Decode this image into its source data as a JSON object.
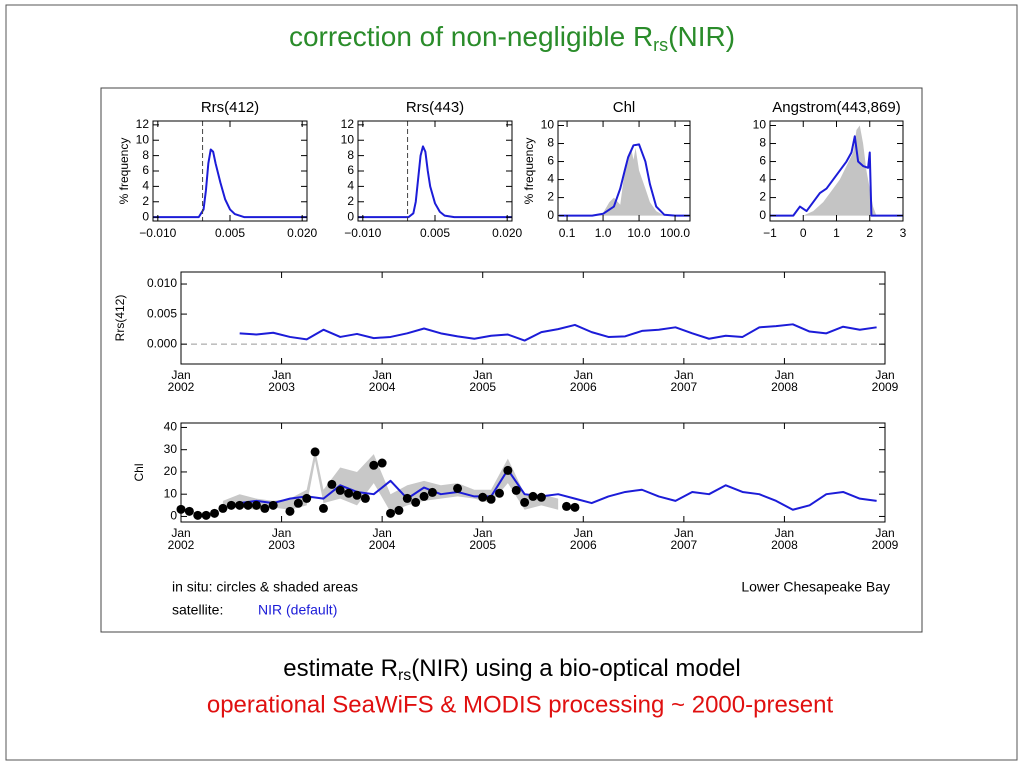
{
  "title": {
    "text": "correction of non-negligible R",
    "sub": "rs",
    "tail": "(NIR)"
  },
  "chart_data": [
    {
      "type": "line",
      "title": "Rrs(412)",
      "y_label": "% frequency",
      "xlim": [
        -0.011,
        0.021
      ],
      "xticks": [
        {
          "value": -0.01,
          "label": "−0.010"
        },
        0.005,
        {
          "value": 0.02,
          "label": "0.020"
        }
      ],
      "ylim": [
        -0.5,
        12.5
      ],
      "yticks": [
        0,
        2,
        4,
        6,
        8,
        10,
        12
      ],
      "ref_x": -0.0007,
      "series": [
        {
          "style": "line",
          "color": "#1c1cd8",
          "x": [
            -0.011,
            -0.0015,
            -0.0005,
            0,
            0.0005,
            0.001,
            0.0015,
            0.002,
            0.003,
            0.004,
            0.005,
            0.006,
            0.008,
            0.021
          ],
          "values": [
            0,
            0,
            1,
            3.5,
            7,
            8.8,
            8.5,
            7,
            4.5,
            2.3,
            1,
            0.4,
            0,
            0
          ]
        }
      ]
    },
    {
      "type": "line",
      "title": "Rrs(443)",
      "xlim": [
        -0.011,
        0.021
      ],
      "xticks": [
        {
          "value": -0.01,
          "label": "−0.010"
        },
        0.005,
        {
          "value": 0.02,
          "label": "0.020"
        }
      ],
      "ylim": [
        -0.5,
        12.5
      ],
      "yticks": [
        0,
        2,
        4,
        6,
        8,
        10,
        12
      ],
      "ref_x": -0.0007,
      "series": [
        {
          "style": "line",
          "color": "#1c1cd8",
          "x": [
            -0.011,
            -0.0005,
            0.0005,
            0.001,
            0.0015,
            0.002,
            0.0025,
            0.003,
            0.0035,
            0.004,
            0.005,
            0.006,
            0.007,
            0.009,
            0.021
          ],
          "values": [
            0,
            0,
            0.5,
            2,
            5,
            8,
            9.2,
            8.5,
            6,
            4,
            1.8,
            0.7,
            0.2,
            0,
            0
          ]
        }
      ]
    },
    {
      "type": "line",
      "title": "Chl",
      "y_label": "% frequency",
      "xscale": "log",
      "xlim": [
        0.056,
        260
      ],
      "xticks": [
        0.1,
        {
          "value": 1,
          "label": "1.0"
        },
        {
          "value": 10,
          "label": "10.0"
        },
        {
          "value": 100,
          "label": "100.0"
        }
      ],
      "ylim": [
        -0.6,
        10.5
      ],
      "yticks": [
        0,
        2,
        4,
        6,
        8,
        10
      ],
      "series": [
        {
          "style": "area",
          "color": "#c4c4c4",
          "x": [
            0.5,
            1,
            1.5,
            2,
            3,
            4,
            5,
            6,
            7,
            8,
            10,
            15,
            20,
            30,
            50
          ],
          "values": [
            0,
            0.3,
            1.5,
            2,
            1.2,
            5,
            6,
            7.5,
            6.2,
            7.5,
            5,
            3,
            1.5,
            0.5,
            0
          ]
        },
        {
          "style": "line",
          "color": "#1c1cd8",
          "x": [
            0.06,
            0.5,
            1,
            2,
            3,
            4,
            5,
            7,
            10,
            15,
            20,
            30,
            50,
            100,
            250
          ],
          "values": [
            0,
            0,
            0.2,
            1,
            3,
            5,
            6.5,
            7.8,
            7.9,
            6,
            3.5,
            1,
            0.1,
            0,
            0
          ]
        }
      ]
    },
    {
      "type": "line",
      "title": "Angstrom(443,869)",
      "xlim": [
        -1,
        3
      ],
      "xticks": [
        {
          "value": -1,
          "label": "−1"
        },
        0,
        1,
        2,
        3
      ],
      "ylim": [
        -0.6,
        10.5
      ],
      "yticks": [
        0,
        2,
        4,
        6,
        8,
        10
      ],
      "series": [
        {
          "style": "area",
          "color": "#c4c4c4",
          "x": [
            0,
            0.3,
            0.6,
            0.9,
            1.1,
            1.3,
            1.5,
            1.6,
            1.7,
            1.8,
            1.9,
            2.0,
            2.1,
            2.2
          ],
          "values": [
            0,
            0.5,
            1.5,
            3,
            4,
            5.5,
            7,
            9.5,
            10,
            8,
            5,
            3,
            1,
            0
          ]
        },
        {
          "style": "line",
          "color": "#1c1cd8",
          "x": [
            -1,
            -0.3,
            -0.1,
            0.1,
            0.3,
            0.5,
            0.7,
            0.9,
            1.1,
            1.3,
            1.45,
            1.55,
            1.65,
            1.8,
            1.95,
            2.0,
            2.05,
            3
          ],
          "values": [
            0,
            0,
            1,
            0.5,
            1.5,
            2.5,
            3,
            4,
            5,
            6,
            7,
            8.8,
            6,
            5.5,
            5.3,
            7,
            0,
            0
          ]
        }
      ]
    },
    {
      "type": "line",
      "y_label": "Rrs(412)",
      "xlim": [
        "2002-01",
        "2009-01"
      ],
      "xticks": [
        {
          "value": "2002-01",
          "label": [
            "Jan",
            "2002"
          ]
        },
        {
          "value": "2003-01",
          "label": [
            "Jan",
            "2003"
          ]
        },
        {
          "value": "2004-01",
          "label": [
            "Jan",
            "2004"
          ]
        },
        {
          "value": "2005-01",
          "label": [
            "Jan",
            "2005"
          ]
        },
        {
          "value": "2006-01",
          "label": [
            "Jan",
            "2006"
          ]
        },
        {
          "value": "2007-01",
          "label": [
            "Jan",
            "2007"
          ]
        },
        {
          "value": "2008-01",
          "label": [
            "Jan",
            "2008"
          ]
        },
        {
          "value": "2009-01",
          "label": [
            "Jan",
            "2009"
          ]
        }
      ],
      "ylim": [
        -0.0033,
        0.012
      ],
      "yticks": [
        {
          "value": 0,
          "label": "0.000"
        },
        0.005,
        {
          "value": 0.01,
          "label": "0.010"
        }
      ],
      "ref_y": 0,
      "series": [
        {
          "style": "line",
          "color": "#1c1cd8",
          "x": [
            "2002-08",
            "2002-10",
            "2002-12",
            "2003-02",
            "2003-04",
            "2003-06",
            "2003-08",
            "2003-10",
            "2003-12",
            "2004-02",
            "2004-04",
            "2004-06",
            "2004-08",
            "2004-10",
            "2004-12",
            "2005-02",
            "2005-04",
            "2005-06",
            "2005-08",
            "2005-10",
            "2005-12",
            "2006-02",
            "2006-04",
            "2006-06",
            "2006-08",
            "2006-10",
            "2006-12",
            "2007-02",
            "2007-04",
            "2007-06",
            "2007-08",
            "2007-10",
            "2007-12",
            "2008-02",
            "2008-04",
            "2008-06",
            "2008-08",
            "2008-10",
            "2008-12"
          ],
          "values": [
            0.0018,
            0.0016,
            0.0019,
            0.0012,
            0.0008,
            0.0024,
            0.0012,
            0.0017,
            0.001,
            0.0012,
            0.0018,
            0.0026,
            0.0018,
            0.0013,
            0.0009,
            0.0014,
            0.0016,
            0.0006,
            0.002,
            0.0025,
            0.0032,
            0.002,
            0.0012,
            0.0013,
            0.0022,
            0.0024,
            0.0028,
            0.0018,
            0.0009,
            0.0014,
            0.0012,
            0.0028,
            0.003,
            0.0033,
            0.0021,
            0.0018,
            0.0029,
            0.0024,
            0.0028
          ]
        }
      ]
    },
    {
      "type": "line",
      "y_label": "Chl",
      "xlim": [
        "2002-01",
        "2009-01"
      ],
      "xticks": [
        {
          "value": "2002-01",
          "label": [
            "Jan",
            "2002"
          ]
        },
        {
          "value": "2003-01",
          "label": [
            "Jan",
            "2003"
          ]
        },
        {
          "value": "2004-01",
          "label": [
            "Jan",
            "2004"
          ]
        },
        {
          "value": "2005-01",
          "label": [
            "Jan",
            "2005"
          ]
        },
        {
          "value": "2006-01",
          "label": [
            "Jan",
            "2006"
          ]
        },
        {
          "value": "2007-01",
          "label": [
            "Jan",
            "2007"
          ]
        },
        {
          "value": "2008-01",
          "label": [
            "Jan",
            "2008"
          ]
        },
        {
          "value": "2009-01",
          "label": [
            "Jan",
            "2009"
          ]
        }
      ],
      "ylim": [
        -2.5,
        42
      ],
      "yticks": [
        0,
        10,
        20,
        30,
        40
      ],
      "annotations": [
        "in situ: circles & shaded areas",
        "satellite:",
        "Lower Chesapeake Bay"
      ],
      "series": [
        {
          "style": "band",
          "color": "#c8c8c8",
          "x": [
            "2002-06",
            "2002-08",
            "2002-10",
            "2002-12",
            "2003-02",
            "2003-04",
            "2003-05",
            "2003-06",
            "2003-08",
            "2003-10",
            "2003-12",
            "2004-02",
            "2004-04",
            "2004-06",
            "2004-08",
            "2004-10",
            "2004-12",
            "2005-02",
            "2005-04",
            "2005-06",
            "2005-08",
            "2005-10"
          ],
          "lower": [
            3,
            4,
            3,
            4,
            3,
            5,
            25,
            6,
            8,
            5,
            15,
            2,
            5,
            7,
            8,
            9,
            8,
            6,
            15,
            3,
            5,
            3
          ],
          "upper": [
            7,
            10,
            8,
            7,
            8,
            12,
            30,
            12,
            22,
            20,
            28,
            10,
            14,
            16,
            14,
            15,
            12,
            12,
            26,
            10,
            10,
            8
          ]
        },
        {
          "style": "line",
          "name": "NIR (default)",
          "color": "#1c1cd8",
          "x": [
            "2002-08",
            "2002-10",
            "2002-12",
            "2003-02",
            "2003-04",
            "2003-06",
            "2003-08",
            "2003-10",
            "2003-12",
            "2004-02",
            "2004-04",
            "2004-06",
            "2004-08",
            "2004-10",
            "2004-12",
            "2005-02",
            "2005-04",
            "2005-06",
            "2005-08",
            "2005-10",
            "2005-12",
            "2006-02",
            "2006-04",
            "2006-06",
            "2006-08",
            "2006-10",
            "2006-12",
            "2007-02",
            "2007-04",
            "2007-06",
            "2007-08",
            "2007-10",
            "2007-12",
            "2008-02",
            "2008-04",
            "2008-06",
            "2008-08",
            "2008-10",
            "2008-12"
          ],
          "values": [
            6,
            7,
            6,
            8,
            9,
            8,
            14,
            11,
            10,
            16,
            8,
            13,
            10,
            11,
            9,
            9,
            21,
            10,
            9,
            10,
            8,
            6,
            9,
            11,
            12,
            9,
            7,
            11,
            10,
            14,
            11,
            10,
            7,
            3,
            5,
            10,
            11,
            8,
            7
          ]
        },
        {
          "style": "points",
          "color": "#000000",
          "x": [
            "2002-01",
            "2002-02",
            "2002-03",
            "2002-04",
            "2002-05",
            "2002-06",
            "2002-07",
            "2002-08",
            "2002-09",
            "2002-10",
            "2002-11",
            "2002-12",
            "2003-02",
            "2003-03",
            "2003-04",
            "2003-05",
            "2003-06",
            "2003-07",
            "2003-08",
            "2003-09",
            "2003-10",
            "2003-11",
            "2003-12",
            "2004-01",
            "2004-02",
            "2004-03",
            "2004-04",
            "2004-05",
            "2004-06",
            "2004-07",
            "2004-10",
            "2005-01",
            "2005-02",
            "2005-03",
            "2005-04",
            "2005-05",
            "2005-06",
            "2005-07",
            "2005-08",
            "2005-11",
            "2005-12"
          ],
          "values": [
            3.2,
            2.3,
            0.5,
            0.5,
            1.4,
            3.6,
            5,
            5,
            5,
            5,
            3.6,
            5,
            2.3,
            5.9,
            8.1,
            29,
            3.6,
            14.4,
            11.7,
            10.4,
            9.5,
            8.1,
            23,
            24,
            1.4,
            2.7,
            8.1,
            6.3,
            9,
            10.8,
            12.6,
            8.6,
            7.7,
            10.4,
            20.7,
            11.7,
            6.3,
            9,
            8.6,
            4.5,
            4.1
          ]
        }
      ]
    }
  ],
  "footer": {
    "line1": {
      "text": "estimate R",
      "sub": "rs",
      "tail": "(NIR) using a bio-optical model"
    },
    "line2": "operational SeaWiFS & MODIS processing ~ 2000-present"
  }
}
